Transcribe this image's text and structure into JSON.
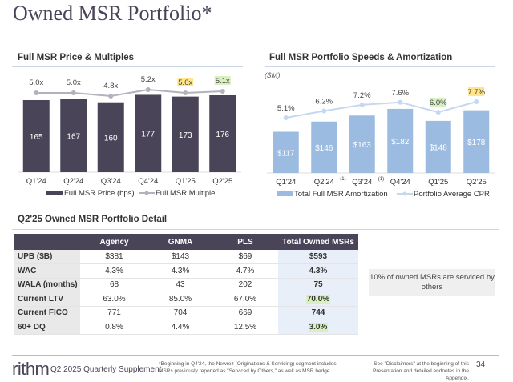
{
  "page_title": "Owned MSR Portfolio*",
  "colors": {
    "brand": "#4a4458",
    "price_bar": "#4a4458",
    "multiple_line": "#b4b1bd",
    "amort_bar": "#9bbbe0",
    "cpr_line": "#c5d8ee",
    "highlight_yellow": "#ffe58a",
    "highlight_green": "#d8f0c0"
  },
  "chart_data": [
    {
      "type": "bar",
      "title": "Full MSR Price & Multiples",
      "categories": [
        "Q1'24",
        "Q2'24",
        "Q3'24",
        "Q4'24",
        "Q1'25",
        "Q2'25"
      ],
      "series": [
        {
          "name": "Full MSR Price (bps)",
          "type": "bar",
          "values": [
            165,
            167,
            160,
            177,
            173,
            176
          ],
          "labels": [
            "165",
            "167",
            "160",
            "177",
            "173",
            "176"
          ]
        },
        {
          "name": "Full MSR Multiple",
          "type": "line",
          "values": [
            5.0,
            5.0,
            4.8,
            5.2,
            5.0,
            5.1
          ],
          "labels": [
            "5.0x",
            "5.0x",
            "4.8x",
            "5.2x",
            "5.0x",
            "5.1x"
          ],
          "highlights": [
            "",
            "",
            "",
            "",
            "yellow",
            "green"
          ]
        }
      ],
      "legend": "bottom"
    },
    {
      "type": "bar",
      "title": "Full MSR Portfolio Speeds & Amortization",
      "unit_label": "($M)",
      "categories": [
        "Q1'24",
        "Q2'24",
        "Q3'24",
        "Q4'24",
        "Q1'25",
        "Q2'25"
      ],
      "category_notes": [
        "",
        "(1)",
        "(1)",
        "",
        "",
        ""
      ],
      "series": [
        {
          "name": "Total Full MSR Amortization",
          "type": "bar",
          "values": [
            117,
            146,
            163,
            182,
            148,
            178
          ],
          "labels": [
            "$117",
            "$146",
            "$163",
            "$182",
            "$148",
            "$178"
          ]
        },
        {
          "name": "Portfolio Average CPR",
          "type": "line",
          "values": [
            5.1,
            6.2,
            7.2,
            7.6,
            6.0,
            7.7
          ],
          "labels": [
            "5.1%",
            "6.2%",
            "7.2%",
            "7.6%",
            "6.0%",
            "7.7%"
          ],
          "highlights": [
            "",
            "",
            "",
            "",
            "green",
            "yellow"
          ]
        }
      ],
      "legend": "bottom"
    }
  ],
  "table": {
    "title": "Q2'25 Owned MSR Portfolio Detail",
    "headers": [
      "",
      "Agency",
      "GNMA",
      "PLS",
      "Total Owned MSRs"
    ],
    "rows": [
      {
        "label": "UPB ($B)",
        "cells": [
          "$381",
          "$143",
          "$69",
          "$593"
        ],
        "hl": ""
      },
      {
        "label": "WAC",
        "cells": [
          "4.3%",
          "4.3%",
          "4.7%",
          "4.3%"
        ],
        "hl": ""
      },
      {
        "label": "WALA (months)",
        "cells": [
          "68",
          "43",
          "202",
          "75"
        ],
        "hl": ""
      },
      {
        "label": "Current LTV",
        "cells": [
          "63.0%",
          "85.0%",
          "67.0%",
          "70.0%"
        ],
        "hl": "green"
      },
      {
        "label": "Current FICO",
        "cells": [
          "771",
          "704",
          "669",
          "744"
        ],
        "hl": ""
      },
      {
        "label": "60+ DQ",
        "cells": [
          "0.8%",
          "4.4%",
          "12.5%",
          "3.0%"
        ],
        "hl": "green"
      }
    ]
  },
  "callout": "10% of owned MSRs are serviced by others",
  "footer": {
    "logo": "rithm",
    "supplement": "Q2 2025 Quarterly Supplement",
    "note": "*Beginning in Q4'24, the Newrez (Originations & Servicing) segment includes MSRs previously reported as \"Serviced by Others,\" as well as MSR hedge",
    "disclaimer": "See \"Disclaimers\" at the beginning of this Presentation and detailed endnotes in the Appendix.",
    "page": "34"
  }
}
